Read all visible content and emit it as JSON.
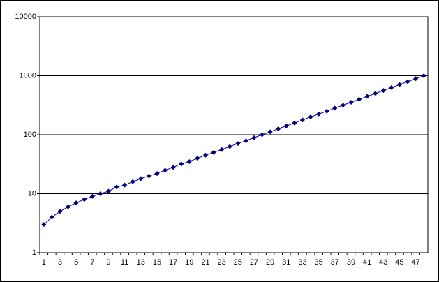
{
  "chart_data": {
    "type": "line",
    "categories": [
      "1",
      null,
      "3",
      null,
      "5",
      null,
      "7",
      null,
      "9",
      null,
      "11",
      null,
      "13",
      null,
      "15",
      null,
      "17",
      null,
      "19",
      null,
      "21",
      null,
      "23",
      null,
      "25",
      null,
      "27",
      null,
      "29",
      null,
      "31",
      null,
      "33",
      null,
      "35",
      null,
      "37",
      null,
      "39",
      null,
      "41",
      null,
      "43",
      null,
      "45",
      null,
      "47",
      null
    ],
    "series": [
      {
        "color": "#000080",
        "values": [
          3,
          4,
          5,
          6,
          7,
          8,
          9,
          10,
          11,
          13,
          14,
          16,
          18,
          20,
          22,
          25,
          28,
          32,
          35,
          40,
          45,
          50,
          56,
          63,
          71,
          79,
          89,
          100,
          112,
          126,
          141,
          158,
          178,
          200,
          224,
          251,
          282,
          316,
          355,
          398,
          447,
          501,
          562,
          631,
          708,
          794,
          891,
          1000
        ]
      }
    ],
    "ylim": [
      1,
      10000
    ],
    "yticks": [
      1,
      10,
      100,
      1000,
      10000
    ],
    "log_y": true,
    "grid": true
  }
}
